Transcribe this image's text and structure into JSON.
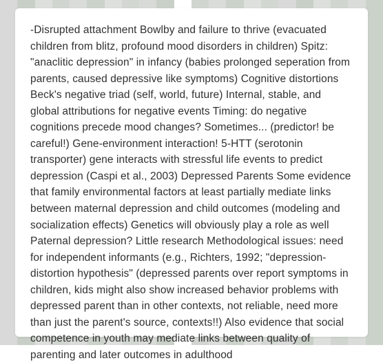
{
  "document": {
    "text": "-Disrupted attachment Bowlby and failure to thrive (evacuated children from blitz, profound mood disorders in children) Spitz: \"anaclitic depression\" in infancy (babies prolonged seperation from parents, caused depressive like symptoms) Cognitive distortions Beck's negative triad (self, world, future) Internal, stable, and global attributions for negative events Timing: do negative cognitions precede mood changes? Sometimes... (predictor! be careful!) Gene-environment interaction! 5-HTT (serotonin transporter) gene interacts with stressful life events to predict depression (Caspi et al., 2003) Depressed Parents Some evidence that family environmental factors at least partially mediate links between maternal depression and child outcomes (modeling and socialization effects) Genetics will obviously play a role as well Paternal depression? Little research Methodological issues: need for independent informants (e.g., Richters, 1992; \"depression-distortion hypothesis\" (depressed parents over report symptoms in children, kids might also show increased behavior problems with depressed parent than in other contexts, not reliable, need more than just the parent's source, contexts!!) Also evidence that social competence in youth may mediate links between quality of parenting and later outcomes in adulthood",
    "font_size": 15.5,
    "line_height": 1.52,
    "text_color": "#303030",
    "card_background": "#ffffff",
    "card_border_radius": 6
  },
  "background": {
    "stripe_colors": [
      "#d8d9d8",
      "#c8cfc7",
      "#dcdfdb",
      "#d0d6cf",
      "#dadcd9",
      "#cbd2ca",
      "#dee0dd",
      "#d2d8d1",
      "#d8dad7",
      "#c9d0c8",
      "#dcded b",
      "#d0d6cf",
      "#dadcd9",
      "#cbd2ca",
      "#dee0dd",
      "#d2d8d1",
      "#d8d9d8",
      "#c8cfc7",
      "#dcdfdb",
      "#d0d6cf",
      "#dadcd9",
      "#cbd2ca"
    ]
  }
}
